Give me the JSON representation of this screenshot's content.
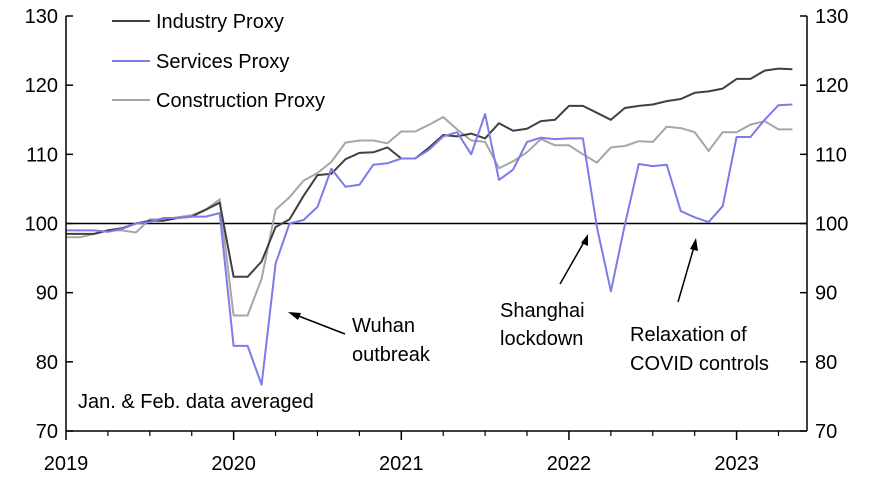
{
  "chart_data": {
    "type": "line",
    "title": "",
    "xlabel": "",
    "ylabel": "",
    "ylim": [
      70,
      130
    ],
    "yticks": [
      70,
      80,
      90,
      100,
      110,
      120,
      130
    ],
    "xlim": [
      2019.0,
      2023.42
    ],
    "xtick_labels": [
      "2019",
      "2020",
      "2021",
      "2022",
      "2023"
    ],
    "reference_line": 100,
    "legend_position": "top-left",
    "colors": {
      "industry": "#404040",
      "services": "#7b7bea",
      "construction": "#a6a6a6",
      "reference": "#000000"
    },
    "series": [
      {
        "name": "Industry Proxy",
        "key": "industry",
        "x": [
          2019.0,
          2019.083,
          2019.167,
          2019.25,
          2019.333,
          2019.417,
          2019.5,
          2019.583,
          2019.667,
          2019.75,
          2019.833,
          2019.917,
          2020.0,
          2020.083,
          2020.167,
          2020.25,
          2020.333,
          2020.417,
          2020.5,
          2020.583,
          2020.667,
          2020.75,
          2020.833,
          2020.917,
          2021.0,
          2021.083,
          2021.167,
          2021.25,
          2021.333,
          2021.417,
          2021.5,
          2021.583,
          2021.667,
          2021.75,
          2021.833,
          2021.917,
          2022.0,
          2022.083,
          2022.167,
          2022.25,
          2022.333,
          2022.417,
          2022.5,
          2022.583,
          2022.667,
          2022.75,
          2022.833,
          2022.917,
          2023.0,
          2023.083,
          2023.167,
          2023.25,
          2023.333
        ],
        "values": [
          98.5,
          98.5,
          98.5,
          99.0,
          99.3,
          100.0,
          100.4,
          100.4,
          100.8,
          101.0,
          102.0,
          103.0,
          92.3,
          92.3,
          94.5,
          99.5,
          100.6,
          104.0,
          107.0,
          107.2,
          109.3,
          110.2,
          110.3,
          111.0,
          109.4,
          109.4,
          111.0,
          112.8,
          112.6,
          113.0,
          112.3,
          114.5,
          113.4,
          113.7,
          114.8,
          115.0,
          117.0,
          117.0,
          116.0,
          115.0,
          116.7,
          117.0,
          117.2,
          117.7,
          118.0,
          118.9,
          119.1,
          119.5,
          120.9,
          120.9,
          122.1,
          122.4,
          122.3
        ]
      },
      {
        "name": "Services Proxy",
        "key": "services",
        "x": [
          2019.0,
          2019.083,
          2019.167,
          2019.25,
          2019.333,
          2019.417,
          2019.5,
          2019.583,
          2019.667,
          2019.75,
          2019.833,
          2019.917,
          2020.0,
          2020.083,
          2020.167,
          2020.25,
          2020.333,
          2020.417,
          2020.5,
          2020.583,
          2020.667,
          2020.75,
          2020.833,
          2020.917,
          2021.0,
          2021.083,
          2021.167,
          2021.25,
          2021.333,
          2021.417,
          2021.5,
          2021.583,
          2021.667,
          2021.75,
          2021.833,
          2021.917,
          2022.0,
          2022.083,
          2022.167,
          2022.25,
          2022.333,
          2022.417,
          2022.5,
          2022.583,
          2022.667,
          2022.75,
          2022.833,
          2022.917,
          2023.0,
          2023.083,
          2023.167,
          2023.25,
          2023.333
        ],
        "values": [
          99.0,
          99.0,
          99.0,
          98.8,
          99.2,
          100.0,
          100.2,
          100.8,
          100.8,
          101.0,
          101.0,
          101.5,
          82.3,
          82.3,
          76.7,
          94.2,
          100.0,
          100.5,
          102.4,
          107.9,
          105.3,
          105.6,
          108.5,
          108.7,
          109.4,
          109.4,
          110.7,
          112.6,
          113.2,
          110.0,
          115.8,
          106.3,
          107.8,
          111.8,
          112.4,
          112.2,
          112.3,
          112.3,
          99.5,
          90.2,
          99.8,
          108.6,
          108.3,
          108.5,
          101.8,
          100.9,
          100.2,
          102.5,
          112.5,
          112.5,
          115.0,
          117.1,
          117.2
        ]
      },
      {
        "name": "Construction Proxy",
        "key": "construction",
        "x": [
          2019.0,
          2019.083,
          2019.167,
          2019.25,
          2019.333,
          2019.417,
          2019.5,
          2019.583,
          2019.667,
          2019.75,
          2019.833,
          2019.917,
          2020.0,
          2020.083,
          2020.167,
          2020.25,
          2020.333,
          2020.417,
          2020.5,
          2020.583,
          2020.667,
          2020.75,
          2020.833,
          2020.917,
          2021.0,
          2021.083,
          2021.167,
          2021.25,
          2021.333,
          2021.417,
          2021.5,
          2021.583,
          2021.667,
          2021.75,
          2021.833,
          2021.917,
          2022.0,
          2022.083,
          2022.167,
          2022.25,
          2022.333,
          2022.417,
          2022.5,
          2022.583,
          2022.667,
          2022.75,
          2022.833,
          2022.917,
          2023.0,
          2023.083,
          2023.167,
          2023.25,
          2023.333
        ],
        "values": [
          98.0,
          98.0,
          98.5,
          99.0,
          99.0,
          98.7,
          100.6,
          100.6,
          100.9,
          101.2,
          102.0,
          103.5,
          86.7,
          86.7,
          92.0,
          102.0,
          103.8,
          106.2,
          107.3,
          108.9,
          111.7,
          112.0,
          112.0,
          111.6,
          113.3,
          113.3,
          114.3,
          115.4,
          113.6,
          112.0,
          111.8,
          108.0,
          109.0,
          110.3,
          112.2,
          111.3,
          111.3,
          110.0,
          108.8,
          111.0,
          111.2,
          111.9,
          111.8,
          114.0,
          113.8,
          113.2,
          110.5,
          113.2,
          113.2,
          114.3,
          114.8,
          113.6,
          113.6
        ]
      }
    ],
    "annotations": [
      {
        "key": "wuhan",
        "lines": [
          "Wuhan",
          "outbreak"
        ]
      },
      {
        "key": "shanghai",
        "lines": [
          "Shanghai",
          "lockdown"
        ]
      },
      {
        "key": "relaxation",
        "lines": [
          "Relaxation of",
          "COVID controls"
        ]
      },
      {
        "key": "note",
        "lines": [
          "Jan. & Feb. data averaged"
        ]
      }
    ]
  }
}
